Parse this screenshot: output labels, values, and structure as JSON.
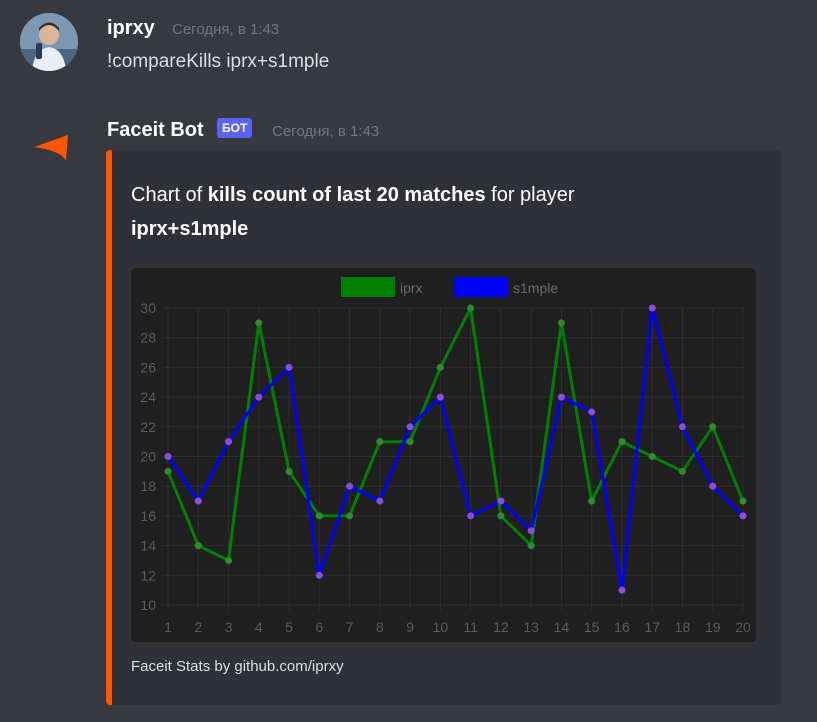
{
  "message1": {
    "username": "iprxy",
    "timestamp": "Сегодня, в 1:43",
    "content": "!compareKills iprx+s1mple"
  },
  "message2": {
    "username": "Faceit Bot",
    "bot_tag": "БОТ",
    "timestamp": "Сегодня, в 1:43",
    "embed": {
      "accent_color": "#ff5500",
      "title_part1": "Chart of ",
      "title_part2": "kills count of last 20 matches",
      "title_part3": " for player",
      "title_part4": "iprx+s1mple",
      "footer": "Faceit Stats by github.com/iprxy"
    }
  },
  "chart_data": {
    "type": "line",
    "x": [
      1,
      2,
      3,
      4,
      5,
      6,
      7,
      8,
      9,
      10,
      11,
      12,
      13,
      14,
      15,
      16,
      17,
      18,
      19,
      20
    ],
    "series": [
      {
        "name": "iprx",
        "color": "#008000",
        "values": [
          19,
          14,
          13,
          29,
          19,
          16,
          16,
          21,
          21,
          26,
          30,
          16,
          14,
          29,
          17,
          21,
          20,
          19,
          22,
          17
        ]
      },
      {
        "name": "s1mple",
        "color": "#0000ff",
        "values": [
          20,
          17,
          21,
          24,
          26,
          12,
          18,
          17,
          22,
          24,
          16,
          17,
          15,
          24,
          23,
          11,
          30,
          22,
          18,
          16
        ]
      }
    ],
    "ylim": [
      10,
      30
    ],
    "yticks": [
      10,
      12,
      14,
      16,
      18,
      20,
      22,
      24,
      26,
      28,
      30
    ],
    "grid": true,
    "legend_position": "top-center"
  }
}
